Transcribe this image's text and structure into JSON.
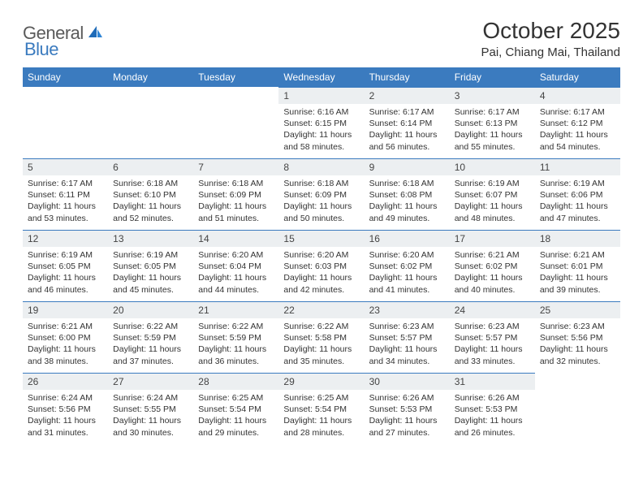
{
  "logo": {
    "text1": "General",
    "text2": "Blue"
  },
  "title": "October 2025",
  "location": "Pai, Chiang Mai, Thailand",
  "colors": {
    "header_bg": "#3b7bbf",
    "header_text": "#ffffff",
    "daynum_bg": "#eceff1",
    "border": "#3b7bbf",
    "text": "#333333",
    "logo_gray": "#5a5a5a",
    "logo_blue": "#3b7bbf",
    "page_bg": "#ffffff"
  },
  "fonts": {
    "title_size": 28,
    "location_size": 15,
    "dayheader_size": 12,
    "daynum_size": 12,
    "detail_size": 10.5
  },
  "day_headers": [
    "Sunday",
    "Monday",
    "Tuesday",
    "Wednesday",
    "Thursday",
    "Friday",
    "Saturday"
  ],
  "weeks": [
    [
      {
        "n": "",
        "sr": "",
        "ss": "",
        "dl": ""
      },
      {
        "n": "",
        "sr": "",
        "ss": "",
        "dl": ""
      },
      {
        "n": "",
        "sr": "",
        "ss": "",
        "dl": ""
      },
      {
        "n": "1",
        "sr": "Sunrise: 6:16 AM",
        "ss": "Sunset: 6:15 PM",
        "dl": "Daylight: 11 hours and 58 minutes."
      },
      {
        "n": "2",
        "sr": "Sunrise: 6:17 AM",
        "ss": "Sunset: 6:14 PM",
        "dl": "Daylight: 11 hours and 56 minutes."
      },
      {
        "n": "3",
        "sr": "Sunrise: 6:17 AM",
        "ss": "Sunset: 6:13 PM",
        "dl": "Daylight: 11 hours and 55 minutes."
      },
      {
        "n": "4",
        "sr": "Sunrise: 6:17 AM",
        "ss": "Sunset: 6:12 PM",
        "dl": "Daylight: 11 hours and 54 minutes."
      }
    ],
    [
      {
        "n": "5",
        "sr": "Sunrise: 6:17 AM",
        "ss": "Sunset: 6:11 PM",
        "dl": "Daylight: 11 hours and 53 minutes."
      },
      {
        "n": "6",
        "sr": "Sunrise: 6:18 AM",
        "ss": "Sunset: 6:10 PM",
        "dl": "Daylight: 11 hours and 52 minutes."
      },
      {
        "n": "7",
        "sr": "Sunrise: 6:18 AM",
        "ss": "Sunset: 6:09 PM",
        "dl": "Daylight: 11 hours and 51 minutes."
      },
      {
        "n": "8",
        "sr": "Sunrise: 6:18 AM",
        "ss": "Sunset: 6:09 PM",
        "dl": "Daylight: 11 hours and 50 minutes."
      },
      {
        "n": "9",
        "sr": "Sunrise: 6:18 AM",
        "ss": "Sunset: 6:08 PM",
        "dl": "Daylight: 11 hours and 49 minutes."
      },
      {
        "n": "10",
        "sr": "Sunrise: 6:19 AM",
        "ss": "Sunset: 6:07 PM",
        "dl": "Daylight: 11 hours and 48 minutes."
      },
      {
        "n": "11",
        "sr": "Sunrise: 6:19 AM",
        "ss": "Sunset: 6:06 PM",
        "dl": "Daylight: 11 hours and 47 minutes."
      }
    ],
    [
      {
        "n": "12",
        "sr": "Sunrise: 6:19 AM",
        "ss": "Sunset: 6:05 PM",
        "dl": "Daylight: 11 hours and 46 minutes."
      },
      {
        "n": "13",
        "sr": "Sunrise: 6:19 AM",
        "ss": "Sunset: 6:05 PM",
        "dl": "Daylight: 11 hours and 45 minutes."
      },
      {
        "n": "14",
        "sr": "Sunrise: 6:20 AM",
        "ss": "Sunset: 6:04 PM",
        "dl": "Daylight: 11 hours and 44 minutes."
      },
      {
        "n": "15",
        "sr": "Sunrise: 6:20 AM",
        "ss": "Sunset: 6:03 PM",
        "dl": "Daylight: 11 hours and 42 minutes."
      },
      {
        "n": "16",
        "sr": "Sunrise: 6:20 AM",
        "ss": "Sunset: 6:02 PM",
        "dl": "Daylight: 11 hours and 41 minutes."
      },
      {
        "n": "17",
        "sr": "Sunrise: 6:21 AM",
        "ss": "Sunset: 6:02 PM",
        "dl": "Daylight: 11 hours and 40 minutes."
      },
      {
        "n": "18",
        "sr": "Sunrise: 6:21 AM",
        "ss": "Sunset: 6:01 PM",
        "dl": "Daylight: 11 hours and 39 minutes."
      }
    ],
    [
      {
        "n": "19",
        "sr": "Sunrise: 6:21 AM",
        "ss": "Sunset: 6:00 PM",
        "dl": "Daylight: 11 hours and 38 minutes."
      },
      {
        "n": "20",
        "sr": "Sunrise: 6:22 AM",
        "ss": "Sunset: 5:59 PM",
        "dl": "Daylight: 11 hours and 37 minutes."
      },
      {
        "n": "21",
        "sr": "Sunrise: 6:22 AM",
        "ss": "Sunset: 5:59 PM",
        "dl": "Daylight: 11 hours and 36 minutes."
      },
      {
        "n": "22",
        "sr": "Sunrise: 6:22 AM",
        "ss": "Sunset: 5:58 PM",
        "dl": "Daylight: 11 hours and 35 minutes."
      },
      {
        "n": "23",
        "sr": "Sunrise: 6:23 AM",
        "ss": "Sunset: 5:57 PM",
        "dl": "Daylight: 11 hours and 34 minutes."
      },
      {
        "n": "24",
        "sr": "Sunrise: 6:23 AM",
        "ss": "Sunset: 5:57 PM",
        "dl": "Daylight: 11 hours and 33 minutes."
      },
      {
        "n": "25",
        "sr": "Sunrise: 6:23 AM",
        "ss": "Sunset: 5:56 PM",
        "dl": "Daylight: 11 hours and 32 minutes."
      }
    ],
    [
      {
        "n": "26",
        "sr": "Sunrise: 6:24 AM",
        "ss": "Sunset: 5:56 PM",
        "dl": "Daylight: 11 hours and 31 minutes."
      },
      {
        "n": "27",
        "sr": "Sunrise: 6:24 AM",
        "ss": "Sunset: 5:55 PM",
        "dl": "Daylight: 11 hours and 30 minutes."
      },
      {
        "n": "28",
        "sr": "Sunrise: 6:25 AM",
        "ss": "Sunset: 5:54 PM",
        "dl": "Daylight: 11 hours and 29 minutes."
      },
      {
        "n": "29",
        "sr": "Sunrise: 6:25 AM",
        "ss": "Sunset: 5:54 PM",
        "dl": "Daylight: 11 hours and 28 minutes."
      },
      {
        "n": "30",
        "sr": "Sunrise: 6:26 AM",
        "ss": "Sunset: 5:53 PM",
        "dl": "Daylight: 11 hours and 27 minutes."
      },
      {
        "n": "31",
        "sr": "Sunrise: 6:26 AM",
        "ss": "Sunset: 5:53 PM",
        "dl": "Daylight: 11 hours and 26 minutes."
      },
      {
        "n": "",
        "sr": "",
        "ss": "",
        "dl": ""
      }
    ]
  ]
}
